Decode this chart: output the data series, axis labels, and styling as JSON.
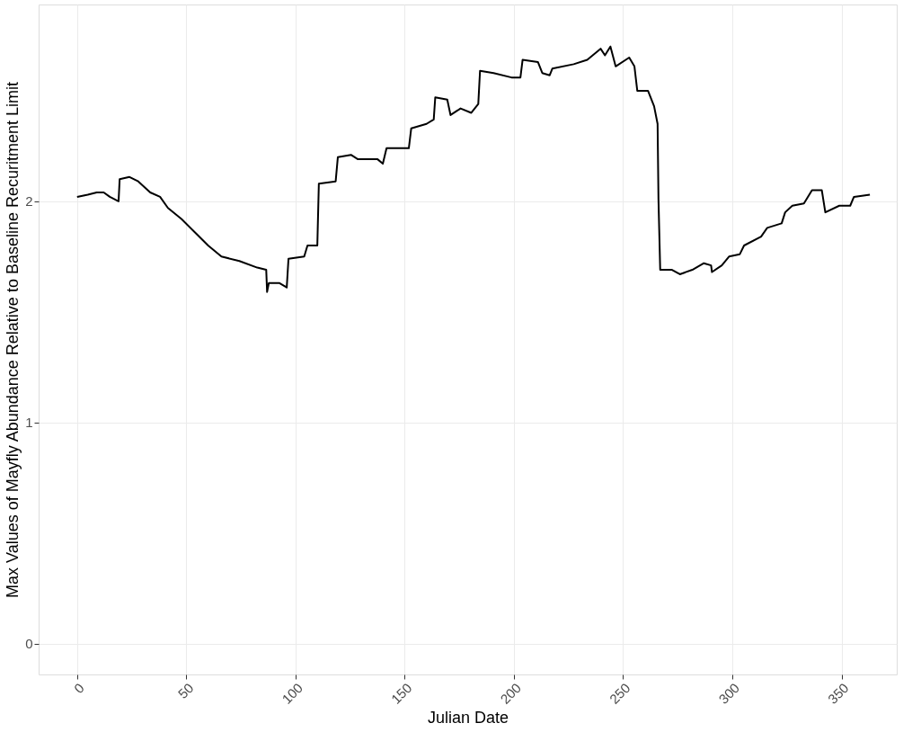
{
  "chart_data": {
    "type": "line",
    "xlabel": "Julian Date",
    "ylabel": "Max Values of Mayfly Abundance Relative to Baseline Recuritment Limit",
    "xlim": [
      -17.6,
      375.3
    ],
    "ylim": [
      -0.14,
      2.89
    ],
    "xticks": [
      0,
      50,
      100,
      150,
      200,
      250,
      300,
      350
    ],
    "yticks": [
      0,
      1,
      2
    ],
    "grid": true,
    "line_style": "solid",
    "marker": "none",
    "series": [
      {
        "color": "#000000",
        "x": [
          0,
          4.9,
          9,
          12.2,
          15,
          19,
          19.5,
          24,
          28,
          33.5,
          38,
          41.6,
          47.8,
          53.9,
          60,
          66.1,
          74.3,
          82.5,
          86.6,
          87,
          87.8,
          92.7,
          96,
          96.8,
          104,
          105.5,
          110,
          110.7,
          118.4,
          119.4,
          125.4,
          128.6,
          137.6,
          140,
          141.7,
          151.9,
          153,
          160,
          163.3,
          164,
          169.5,
          171,
          175.6,
          180.5,
          183.7,
          184.5,
          190.7,
          198.9,
          203,
          204,
          211,
          213,
          216.4,
          217.6,
          227.4,
          233.6,
          239.7,
          241.7,
          244.2,
          246.6,
          252.8,
          255.2,
          256.5,
          261.4,
          264.2,
          265.8,
          266.2,
          267,
          272.4,
          276,
          281.7,
          287,
          290.3,
          290.7,
          295.2,
          298.5,
          303.4,
          305.4,
          313.2,
          316,
          322.6,
          324.2,
          327.5,
          332.8,
          336.5,
          341,
          342.6,
          349,
          354,
          355.7,
          363
        ],
        "values": [
          2.02,
          2.03,
          2.04,
          2.04,
          2.02,
          2.0,
          2.1,
          2.11,
          2.09,
          2.04,
          2.02,
          1.97,
          1.92,
          1.86,
          1.8,
          1.75,
          1.73,
          1.7,
          1.69,
          1.59,
          1.63,
          1.63,
          1.61,
          1.74,
          1.75,
          1.8,
          1.8,
          2.08,
          2.09,
          2.2,
          2.21,
          2.19,
          2.19,
          2.17,
          2.24,
          2.24,
          2.33,
          2.35,
          2.37,
          2.47,
          2.46,
          2.39,
          2.42,
          2.4,
          2.44,
          2.59,
          2.58,
          2.56,
          2.56,
          2.64,
          2.63,
          2.58,
          2.57,
          2.6,
          2.62,
          2.64,
          2.69,
          2.66,
          2.7,
          2.61,
          2.65,
          2.61,
          2.5,
          2.5,
          2.43,
          2.35,
          2.01,
          1.69,
          1.69,
          1.67,
          1.69,
          1.72,
          1.71,
          1.68,
          1.71,
          1.75,
          1.76,
          1.8,
          1.84,
          1.88,
          1.9,
          1.95,
          1.98,
          1.99,
          2.05,
          2.05,
          1.95,
          1.98,
          1.98,
          2.02,
          2.03
        ]
      }
    ]
  }
}
